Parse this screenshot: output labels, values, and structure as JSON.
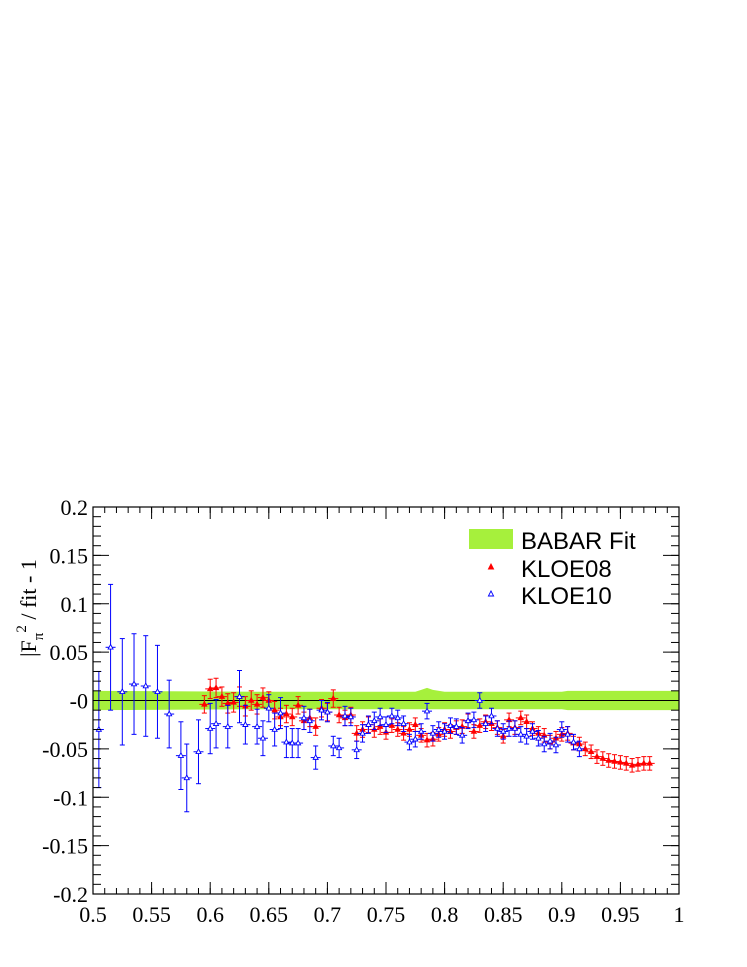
{
  "chart_data": {
    "type": "scatter",
    "ylabel_main": "|F",
    "ylabel_sub": "π",
    "ylabel_sup": "2",
    "ylabel_rest": " / fit - 1",
    "xlim": [
      0.5,
      1.0
    ],
    "ylim": [
      -0.2,
      0.2
    ],
    "x_ticks": [
      0.5,
      0.55,
      0.6,
      0.65,
      0.7,
      0.75,
      0.8,
      0.85,
      0.9,
      0.95,
      1
    ],
    "x_tick_labels": [
      "0.5",
      "0.55",
      "0.6",
      "0.65",
      "0.7",
      "0.75",
      "0.8",
      "0.85",
      "0.9",
      "0.95",
      "1"
    ],
    "y_ticks": [
      -0.2,
      -0.15,
      -0.1,
      -0.05,
      0,
      0.05,
      0.1,
      0.15,
      0.2
    ],
    "y_tick_labels": [
      "-0.2",
      "-0.15",
      "-0.1",
      "-0.05",
      "-0",
      "0.05",
      "0.1",
      "0.15",
      "0.2"
    ],
    "legend": [
      {
        "label": "BABAR Fit",
        "color": "#a6f03c",
        "marker": "band"
      },
      {
        "label": "KLOE08",
        "color": "#ff0000",
        "marker": "filled-triangle"
      },
      {
        "label": "KLOE10",
        "color": "#0000ff",
        "marker": "open-triangle"
      }
    ],
    "band": {
      "name": "BABAR Fit",
      "color": "#a6f03c",
      "x": [
        0.5,
        0.65,
        0.75,
        0.775,
        0.78,
        0.785,
        0.79,
        0.8,
        0.85,
        0.9,
        0.905,
        1.0
      ],
      "lower": [
        -0.01,
        -0.009,
        -0.009,
        -0.009,
        -0.009,
        -0.009,
        -0.009,
        -0.009,
        -0.009,
        -0.009,
        -0.01,
        -0.01
      ],
      "upper": [
        0.01,
        0.009,
        0.009,
        0.009,
        0.011,
        0.013,
        0.011,
        0.009,
        0.009,
        0.009,
        0.01,
        0.01
      ]
    },
    "series": [
      {
        "name": "KLOE08",
        "color": "#ff0000",
        "x": [
          0.595,
          0.6,
          0.605,
          0.61,
          0.615,
          0.62,
          0.625,
          0.63,
          0.635,
          0.64,
          0.645,
          0.65,
          0.655,
          0.66,
          0.665,
          0.67,
          0.675,
          0.68,
          0.685,
          0.69,
          0.695,
          0.7,
          0.705,
          0.71,
          0.715,
          0.72,
          0.725,
          0.73,
          0.735,
          0.74,
          0.745,
          0.75,
          0.755,
          0.76,
          0.765,
          0.77,
          0.775,
          0.78,
          0.785,
          0.79,
          0.795,
          0.8,
          0.805,
          0.81,
          0.815,
          0.82,
          0.825,
          0.83,
          0.835,
          0.84,
          0.845,
          0.85,
          0.855,
          0.86,
          0.865,
          0.87,
          0.875,
          0.88,
          0.885,
          0.89,
          0.895,
          0.9,
          0.905,
          0.91,
          0.915,
          0.92,
          0.925,
          0.93,
          0.935,
          0.94,
          0.945,
          0.95,
          0.955,
          0.96,
          0.965,
          0.97,
          0.975
        ],
        "y": [
          -0.004,
          0.012,
          0.013,
          0.004,
          -0.003,
          -0.002,
          0.004,
          -0.006,
          0.0,
          -0.004,
          0.003,
          0.0,
          -0.01,
          -0.017,
          -0.014,
          -0.017,
          -0.005,
          -0.021,
          -0.018,
          -0.027,
          -0.008,
          -0.012,
          0.002,
          -0.015,
          -0.018,
          -0.015,
          -0.034,
          -0.03,
          -0.025,
          -0.03,
          -0.027,
          -0.033,
          -0.026,
          -0.03,
          -0.034,
          -0.03,
          -0.025,
          -0.036,
          -0.041,
          -0.04,
          -0.035,
          -0.03,
          -0.032,
          -0.028,
          -0.027,
          -0.021,
          -0.032,
          -0.026,
          -0.022,
          -0.024,
          -0.028,
          -0.037,
          -0.02,
          -0.028,
          -0.018,
          -0.022,
          -0.029,
          -0.034,
          -0.036,
          -0.043,
          -0.039,
          -0.035,
          -0.034,
          -0.044,
          -0.045,
          -0.05,
          -0.053,
          -0.058,
          -0.06,
          -0.062,
          -0.063,
          -0.064,
          -0.065,
          -0.067,
          -0.066,
          -0.065,
          -0.065
        ],
        "err": [
          0.009,
          0.01,
          0.01,
          0.01,
          0.01,
          0.01,
          0.01,
          0.01,
          0.01,
          0.01,
          0.01,
          0.009,
          0.009,
          0.009,
          0.009,
          0.009,
          0.009,
          0.009,
          0.009,
          0.009,
          0.009,
          0.009,
          0.009,
          0.008,
          0.008,
          0.008,
          0.008,
          0.008,
          0.008,
          0.008,
          0.008,
          0.007,
          0.007,
          0.007,
          0.007,
          0.007,
          0.007,
          0.007,
          0.007,
          0.007,
          0.007,
          0.007,
          0.007,
          0.007,
          0.007,
          0.007,
          0.007,
          0.007,
          0.007,
          0.007,
          0.007,
          0.007,
          0.007,
          0.007,
          0.007,
          0.007,
          0.007,
          0.007,
          0.007,
          0.007,
          0.007,
          0.007,
          0.007,
          0.007,
          0.007,
          0.007,
          0.007,
          0.007,
          0.007,
          0.007,
          0.007,
          0.007,
          0.007,
          0.007,
          0.007,
          0.007,
          0.007
        ]
      },
      {
        "name": "KLOE10",
        "color": "#0000ff",
        "x": [
          0.505,
          0.515,
          0.525,
          0.535,
          0.545,
          0.555,
          0.565,
          0.575,
          0.58,
          0.59,
          0.6,
          0.605,
          0.615,
          0.625,
          0.63,
          0.64,
          0.645,
          0.65,
          0.655,
          0.66,
          0.665,
          0.67,
          0.675,
          0.68,
          0.685,
          0.69,
          0.695,
          0.7,
          0.705,
          0.71,
          0.715,
          0.72,
          0.725,
          0.73,
          0.735,
          0.74,
          0.745,
          0.75,
          0.755,
          0.76,
          0.765,
          0.77,
          0.775,
          0.78,
          0.785,
          0.79,
          0.795,
          0.8,
          0.805,
          0.81,
          0.815,
          0.82,
          0.825,
          0.83,
          0.835,
          0.84,
          0.845,
          0.85,
          0.855,
          0.86,
          0.865,
          0.87,
          0.875,
          0.88,
          0.885,
          0.89,
          0.895,
          0.9,
          0.905,
          0.91,
          0.915
        ],
        "y": [
          -0.03,
          0.055,
          0.009,
          0.017,
          0.015,
          0.009,
          -0.014,
          -0.057,
          -0.08,
          -0.053,
          -0.029,
          -0.024,
          -0.027,
          0.004,
          -0.025,
          -0.027,
          -0.039,
          -0.008,
          -0.03,
          -0.013,
          -0.043,
          -0.044,
          -0.044,
          -0.018,
          -0.021,
          -0.059,
          -0.01,
          -0.012,
          -0.047,
          -0.049,
          -0.016,
          -0.017,
          -0.051,
          -0.034,
          -0.025,
          -0.021,
          -0.017,
          -0.025,
          -0.016,
          -0.018,
          -0.024,
          -0.043,
          -0.04,
          -0.032,
          -0.011,
          -0.034,
          -0.03,
          -0.032,
          -0.026,
          -0.027,
          -0.036,
          -0.021,
          -0.02,
          0.0,
          -0.024,
          -0.016,
          -0.029,
          -0.032,
          -0.029,
          -0.029,
          -0.035,
          -0.037,
          -0.032,
          -0.039,
          -0.045,
          -0.042,
          -0.046,
          -0.03,
          -0.035,
          -0.043,
          -0.05
        ],
        "err": [
          0.06,
          0.065,
          0.055,
          0.052,
          0.052,
          0.048,
          0.035,
          0.035,
          0.035,
          0.033,
          0.026,
          0.025,
          0.022,
          0.027,
          0.02,
          0.018,
          0.018,
          0.014,
          0.017,
          0.016,
          0.016,
          0.015,
          0.015,
          0.012,
          0.012,
          0.012,
          0.01,
          0.01,
          0.01,
          0.01,
          0.01,
          0.009,
          0.009,
          0.009,
          0.009,
          0.009,
          0.009,
          0.008,
          0.008,
          0.008,
          0.008,
          0.008,
          0.008,
          0.008,
          0.008,
          0.008,
          0.008,
          0.008,
          0.008,
          0.008,
          0.008,
          0.008,
          0.008,
          0.008,
          0.008,
          0.008,
          0.008,
          0.008,
          0.008,
          0.008,
          0.008,
          0.008,
          0.008,
          0.008,
          0.008,
          0.008,
          0.008,
          0.008,
          0.008,
          0.008,
          0.008
        ]
      }
    ]
  }
}
